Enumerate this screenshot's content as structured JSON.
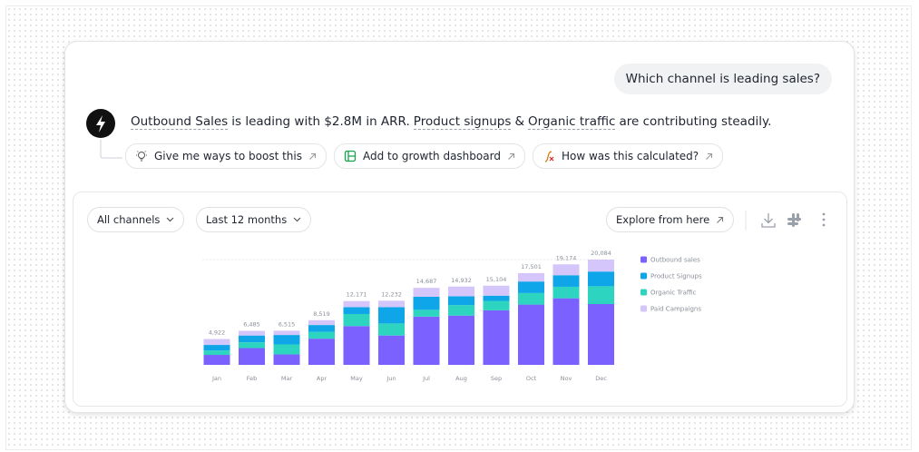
{
  "conversation": {
    "question": "Which channel is leading sales?",
    "answer": [
      {
        "text": "Outbound Sales",
        "linked": true
      },
      {
        "text": "is leading with $2.8M in ARR.",
        "linked": false
      },
      {
        "text": "Product signups",
        "linked": true
      },
      {
        "text": "&",
        "linked": false
      },
      {
        "text": "Organic traffic",
        "linked": true
      },
      {
        "text": "are contributing steadily.",
        "linked": false
      }
    ],
    "suggestions": [
      "Give me ways to boost this",
      "Add to growth dashboard",
      "How was this calculated?"
    ]
  },
  "toolbar": {
    "filters": [
      "All channels",
      "Last 12 months"
    ],
    "action": "Explore from here"
  },
  "chart_data": {
    "type": "stacked_bar",
    "categories": [
      "Jan",
      "Feb",
      "Mar",
      "Apr",
      "May",
      "Jun",
      "Jul",
      "Aug",
      "Sep",
      "Oct",
      "Nov",
      "Dec"
    ],
    "series": [
      {
        "name": "Outbound sales",
        "color": "#7b61ff",
        "values": [
          1900,
          3200,
          2000,
          5000,
          7400,
          5600,
          9200,
          9400,
          10400,
          11500,
          12700,
          11600
        ]
      },
      {
        "name": "Product Signups",
        "color": "#0ea5e9",
        "values": [
          1050,
          1300,
          1800,
          1300,
          1300,
          3100,
          2500,
          1700,
          1000,
          2200,
          2200,
          2800
        ]
      },
      {
        "name": "Organic Traffic",
        "color": "#2dd4bf",
        "values": [
          850,
          1100,
          1900,
          1300,
          2300,
          2300,
          1300,
          2000,
          1800,
          2200,
          2200,
          3400
        ]
      },
      {
        "name": "Paid Campaigns",
        "color": "#d4c5fb",
        "values": [
          1122,
          885,
          815,
          919,
          1171,
          1232,
          1687,
          1832,
          1904,
          1601,
          2074,
          2284
        ]
      }
    ],
    "totals": {
      "values": [
        4922,
        6485,
        6515,
        8519,
        12171,
        12232,
        14687,
        14932,
        15104,
        17501,
        19174,
        20084
      ],
      "value_labels": [
        "4,922",
        "6,485",
        "6,515",
        "8,519",
        "12,171",
        "12,232",
        "14,687",
        "14,932",
        "15,104",
        "17,501",
        "19,174",
        "20,084"
      ]
    }
  }
}
